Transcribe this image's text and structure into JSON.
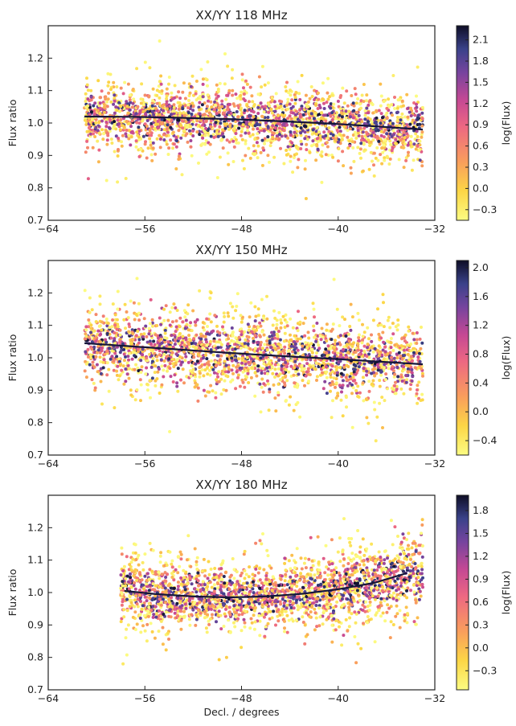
{
  "figure": {
    "xlabel": "Decl. / degrees"
  },
  "chart_data": [
    {
      "type": "scatter",
      "title": "XX/YY 118 MHz",
      "ylabel": "Flux ratio",
      "xlabel": "",
      "xlim": [
        -64,
        -32
      ],
      "ylim": [
        0.7,
        1.3
      ],
      "xticks": [
        -64,
        -56,
        -48,
        -40,
        -32
      ],
      "yticks": [
        0.7,
        0.8,
        0.9,
        1.0,
        1.1,
        1.2
      ],
      "grid": false,
      "scatter_summary": {
        "x_range": [
          -61.0,
          -33.0
        ],
        "center_ratio": 1.0,
        "spread_sd": 0.06,
        "color_encodes": "log(Flux)"
      },
      "fit_line": {
        "x": [
          -61,
          -57,
          -53,
          -49,
          -45,
          -41,
          -37,
          -33
        ],
        "y": [
          1.02,
          1.019,
          1.016,
          1.012,
          1.006,
          0.999,
          0.99,
          0.98
        ]
      },
      "colorbar": {
        "label": "log(Flux)",
        "range": [
          -0.45,
          2.3
        ],
        "ticks": [
          "-0.3",
          "0.0",
          "0.3",
          "0.6",
          "0.9",
          "1.2",
          "1.5",
          "1.8",
          "2.1"
        ]
      }
    },
    {
      "type": "scatter",
      "title": "XX/YY 150 MHz",
      "ylabel": "Flux ratio",
      "xlabel": "",
      "xlim": [
        -64,
        -32
      ],
      "ylim": [
        0.7,
        1.3
      ],
      "xticks": [
        -64,
        -56,
        -48,
        -40,
        -32
      ],
      "yticks": [
        0.7,
        0.8,
        0.9,
        1.0,
        1.1,
        1.2
      ],
      "grid": false,
      "scatter_summary": {
        "x_range": [
          -61.0,
          -33.0
        ],
        "center_ratio": 1.01,
        "spread_sd": 0.065,
        "color_encodes": "log(Flux)"
      },
      "fit_line": {
        "x": [
          -61,
          -57,
          -53,
          -49,
          -45,
          -41,
          -37,
          -33
        ],
        "y": [
          1.045,
          1.035,
          1.025,
          1.015,
          1.006,
          0.998,
          0.989,
          0.98
        ]
      },
      "colorbar": {
        "label": "log(Flux)",
        "range": [
          -0.6,
          2.1
        ],
        "ticks": [
          "-0.4",
          "0.0",
          "0.4",
          "0.8",
          "1.2",
          "1.6",
          "2.0"
        ]
      }
    },
    {
      "type": "scatter",
      "title": "XX/YY 180 MHz",
      "ylabel": "Flux ratio",
      "xlabel": "Decl. / degrees",
      "xlim": [
        -64,
        -32
      ],
      "ylim": [
        0.7,
        1.3
      ],
      "xticks": [
        -64,
        -56,
        -48,
        -40,
        -32
      ],
      "yticks": [
        0.7,
        0.8,
        0.9,
        1.0,
        1.1,
        1.2
      ],
      "grid": false,
      "scatter_summary": {
        "x_range": [
          -58.0,
          -33.0
        ],
        "center_ratio": 1.0,
        "spread_sd": 0.06,
        "color_encodes": "log(Flux)"
      },
      "fit_line": {
        "x": [
          -57.7,
          -55,
          -52,
          -49,
          -46,
          -43,
          -40,
          -37,
          -34.3
        ],
        "y": [
          1.005,
          0.995,
          0.988,
          0.985,
          0.988,
          0.996,
          1.01,
          1.03,
          1.06
        ]
      },
      "colorbar": {
        "label": "log(Flux)",
        "range": [
          -0.55,
          2.0
        ],
        "ticks": [
          "-0.3",
          "0.0",
          "0.3",
          "0.6",
          "0.9",
          "1.2",
          "1.5",
          "1.8"
        ]
      }
    }
  ]
}
